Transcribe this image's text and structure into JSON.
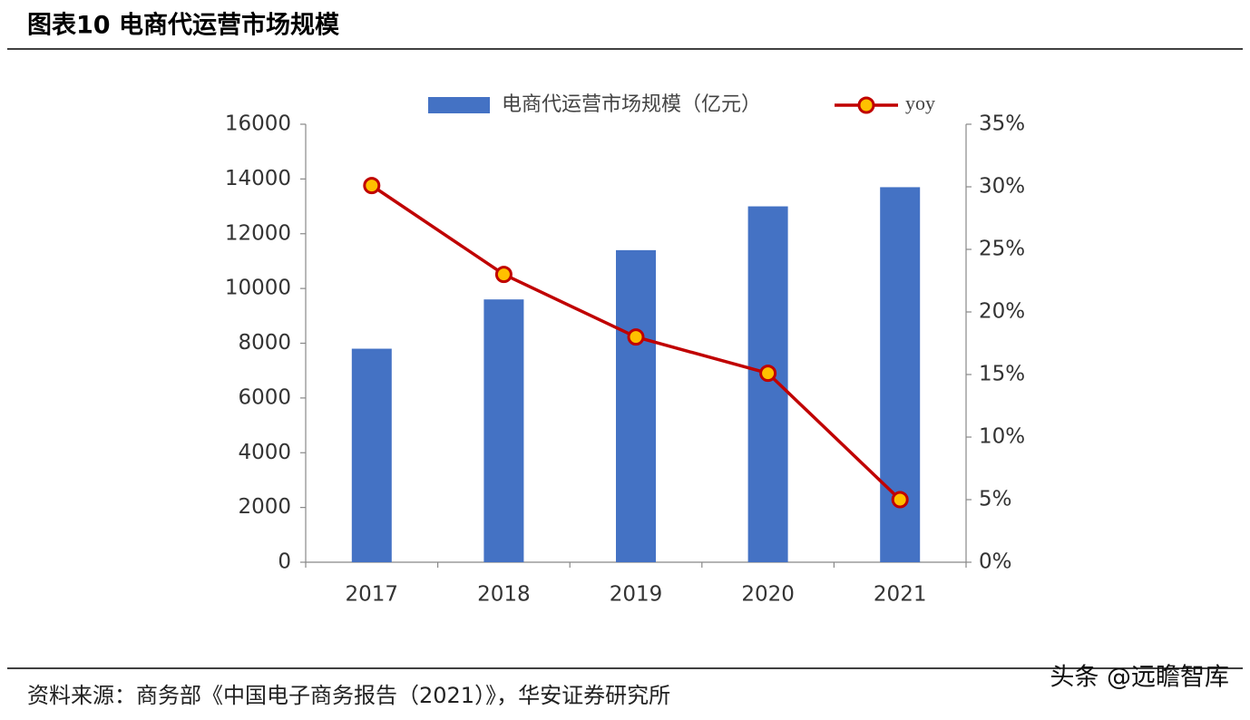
{
  "chart_data": {
    "type": "bar_line",
    "title": "图表10 电商代运营市场规模",
    "source": "资料来源：商务部《中国电子商务报告（2021）》，华安证券研究所",
    "watermark": "头条 @远瞻智库",
    "categories": [
      "2017",
      "2018",
      "2019",
      "2020",
      "2021"
    ],
    "series": [
      {
        "name": "电商代运营市场规模（亿元）",
        "type": "bar",
        "color": "#4472c4",
        "values": [
          7800,
          9600,
          11400,
          13000,
          13700
        ]
      },
      {
        "name": "yoy",
        "type": "line",
        "axis": "y2",
        "color": "#c00000",
        "marker_color": "#ffc000",
        "values": [
          30.1,
          23.0,
          18.0,
          15.1,
          5.0
        ]
      }
    ],
    "ylim": [
      0,
      16000
    ],
    "yticks": [
      0,
      2000,
      4000,
      6000,
      8000,
      10000,
      12000,
      14000,
      16000
    ],
    "y2lim": [
      0,
      35
    ],
    "y2ticks": [
      {
        "value": 0,
        "label": "0%"
      },
      {
        "value": 5,
        "label": "5%"
      },
      {
        "value": 10,
        "label": "10%"
      },
      {
        "value": 15,
        "label": "15%"
      },
      {
        "value": 20,
        "label": "20%"
      },
      {
        "value": 25,
        "label": "25%"
      },
      {
        "value": 30,
        "label": "30%"
      },
      {
        "value": 35,
        "label": "35%"
      }
    ],
    "legend": "top",
    "grid": false
  }
}
